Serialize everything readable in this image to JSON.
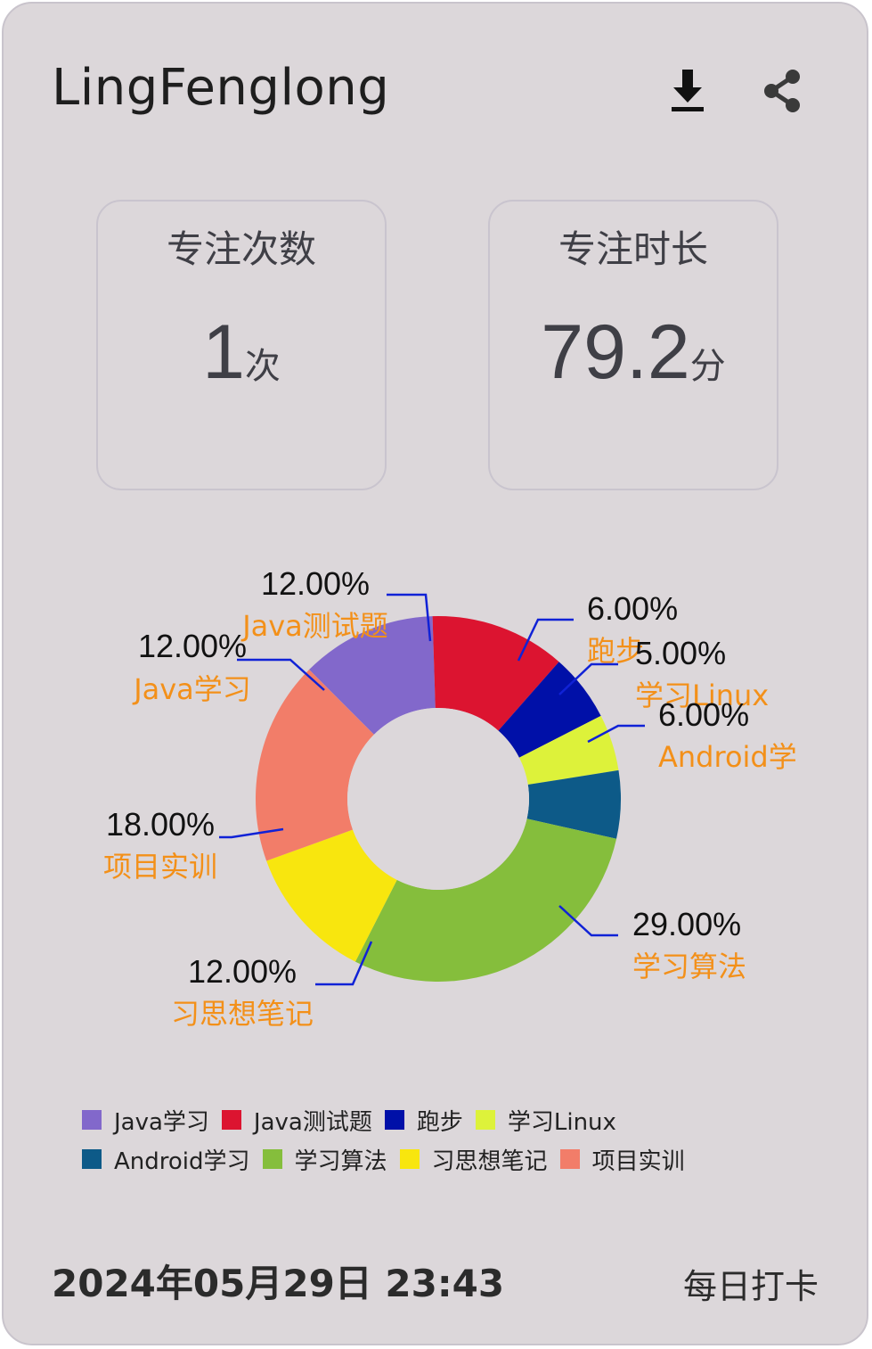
{
  "header": {
    "title": "LingFenglong",
    "download_icon": "download-icon",
    "share_icon": "share-icon"
  },
  "stats": {
    "count": {
      "label": "专注次数",
      "value": "1",
      "unit": "次"
    },
    "duration": {
      "label": "专注时长",
      "value": "79.2",
      "unit": "分"
    }
  },
  "chart_data": {
    "type": "pie",
    "donut": true,
    "legend_position": "bottom",
    "slices": [
      {
        "label": "Java学习",
        "value": 12.0,
        "display": "12.00%",
        "color": "#8268cb"
      },
      {
        "label": "Java测试题",
        "value": 12.0,
        "display": "12.00%",
        "color": "#dc1430"
      },
      {
        "label": "跑步",
        "value": 6.0,
        "display": "6.00%",
        "color": "#0010a8"
      },
      {
        "label": "学习Linux",
        "value": 5.0,
        "display": "5.00%",
        "color": "#ddf23a"
      },
      {
        "label": "Android学习",
        "value": 6.0,
        "display": "6.00%",
        "color": "#0d5a88"
      },
      {
        "label": "学习算法",
        "value": 29.0,
        "display": "29.00%",
        "color": "#85be3c"
      },
      {
        "label": "习思想笔记",
        "value": 12.0,
        "display": "12.00%",
        "color": "#f8e60e"
      },
      {
        "label": "项目实训",
        "value": 18.0,
        "display": "18.00%",
        "color": "#f27d69"
      }
    ],
    "slice_labels": [
      {
        "percent": "12.00%",
        "name": "Java学习"
      },
      {
        "percent": "12.00%",
        "name": "Java测试题"
      },
      {
        "percent": "6.00%",
        "name": "跑步"
      },
      {
        "percent": "5.00%",
        "name": "学习Linux"
      },
      {
        "percent": "6.00%",
        "name": "Android学"
      },
      {
        "percent": "29.00%",
        "name": "学习算法"
      },
      {
        "percent": "12.00%",
        "name": "习思想笔记"
      },
      {
        "percent": "18.00%",
        "name": "项目实训"
      }
    ],
    "label_color": "#f39019",
    "leader_color": "#1022d6"
  },
  "footer": {
    "datetime": "2024年05月29日 23:43",
    "action": "每日打卡"
  }
}
